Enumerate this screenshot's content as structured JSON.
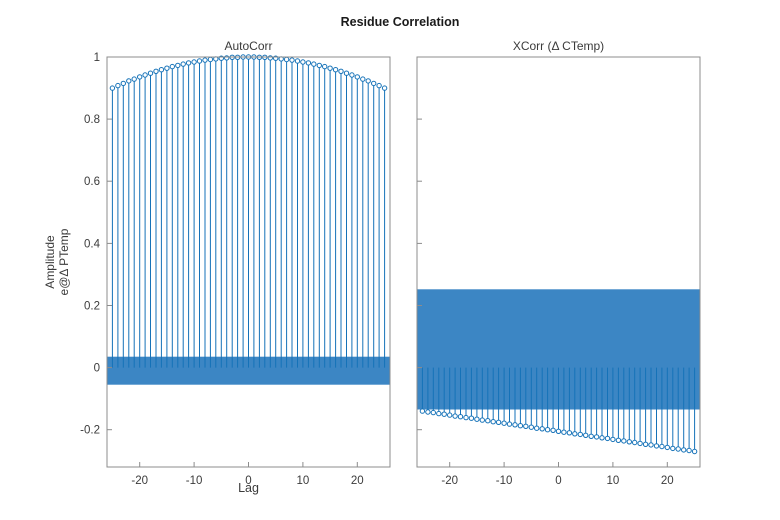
{
  "figure": {
    "title": "Residue Correlation",
    "xlabel": "Lag",
    "ylabel_lines": [
      "Amplitude",
      "e@Δ  PTemp"
    ],
    "colors": {
      "stem": "#1572B8",
      "patch": "#3C86C4",
      "axis": "#8C8C8C",
      "text": "#3B3B3B",
      "title_text": "#1A1A1A",
      "background": "#FFFFFF"
    }
  },
  "chart_data": [
    {
      "type": "stem",
      "title": "AutoCorr",
      "xlim": [
        -26,
        26
      ],
      "ylim": [
        -0.32,
        1.0
      ],
      "xticks": [
        -20,
        -10,
        0,
        10,
        20
      ],
      "yticks": [
        -0.2,
        0,
        0.2,
        0.4,
        0.6,
        0.8,
        1
      ],
      "yticklabels": [
        "-0.2",
        "0",
        "0.2",
        "0.4",
        "0.6",
        "0.8",
        "1"
      ],
      "show_ytick_labels": true,
      "grid": false,
      "confidence_band": [
        -0.055,
        0.035
      ],
      "lags": [
        -25,
        -24,
        -23,
        -22,
        -21,
        -20,
        -19,
        -18,
        -17,
        -16,
        -15,
        -14,
        -13,
        -12,
        -11,
        -10,
        -9,
        -8,
        -7,
        -6,
        -5,
        -4,
        -3,
        -2,
        -1,
        0,
        1,
        2,
        3,
        4,
        5,
        6,
        7,
        8,
        9,
        10,
        11,
        12,
        13,
        14,
        15,
        16,
        17,
        18,
        19,
        20,
        21,
        22,
        23,
        24,
        25
      ],
      "values": [
        0.9,
        0.908,
        0.915,
        0.923,
        0.929,
        0.936,
        0.942,
        0.948,
        0.954,
        0.959,
        0.964,
        0.969,
        0.973,
        0.977,
        0.981,
        0.984,
        0.987,
        0.99,
        0.992,
        0.994,
        0.996,
        0.997,
        0.999,
        0.999,
        1.0,
        1.0,
        1.0,
        0.999,
        0.999,
        0.997,
        0.996,
        0.994,
        0.992,
        0.99,
        0.987,
        0.984,
        0.981,
        0.977,
        0.973,
        0.969,
        0.964,
        0.959,
        0.954,
        0.948,
        0.942,
        0.936,
        0.929,
        0.923,
        0.915,
        0.908,
        0.9
      ]
    },
    {
      "type": "stem",
      "title": "XCorr  (Δ  CTemp)",
      "xlim": [
        -26,
        26
      ],
      "ylim": [
        -0.32,
        1.0
      ],
      "xticks": [
        -20,
        -10,
        0,
        10,
        20
      ],
      "yticks": [
        -0.2,
        0,
        0.2,
        0.4,
        0.6,
        0.8,
        1
      ],
      "yticklabels": [
        "-0.2",
        "0",
        "0.2",
        "0.4",
        "0.6",
        "0.8",
        "1"
      ],
      "show_ytick_labels": false,
      "grid": false,
      "confidence_band": [
        -0.135,
        0.252
      ],
      "lags": [
        -25,
        -24,
        -23,
        -22,
        -21,
        -20,
        -19,
        -18,
        -17,
        -16,
        -15,
        -14,
        -13,
        -12,
        -11,
        -10,
        -9,
        -8,
        -7,
        -6,
        -5,
        -4,
        -3,
        -2,
        -1,
        0,
        1,
        2,
        3,
        4,
        5,
        6,
        7,
        8,
        9,
        10,
        11,
        12,
        13,
        14,
        15,
        16,
        17,
        18,
        19,
        20,
        21,
        22,
        23,
        24,
        25
      ],
      "values": [
        -0.14,
        -0.143,
        -0.145,
        -0.148,
        -0.15,
        -0.153,
        -0.156,
        -0.158,
        -0.161,
        -0.163,
        -0.166,
        -0.169,
        -0.171,
        -0.174,
        -0.176,
        -0.179,
        -0.182,
        -0.184,
        -0.187,
        -0.189,
        -0.192,
        -0.195,
        -0.197,
        -0.2,
        -0.202,
        -0.205,
        -0.208,
        -0.21,
        -0.213,
        -0.215,
        -0.218,
        -0.221,
        -0.223,
        -0.226,
        -0.228,
        -0.231,
        -0.234,
        -0.236,
        -0.239,
        -0.241,
        -0.244,
        -0.247,
        -0.249,
        -0.252,
        -0.254,
        -0.257,
        -0.26,
        -0.262,
        -0.265,
        -0.267,
        -0.27
      ]
    }
  ]
}
